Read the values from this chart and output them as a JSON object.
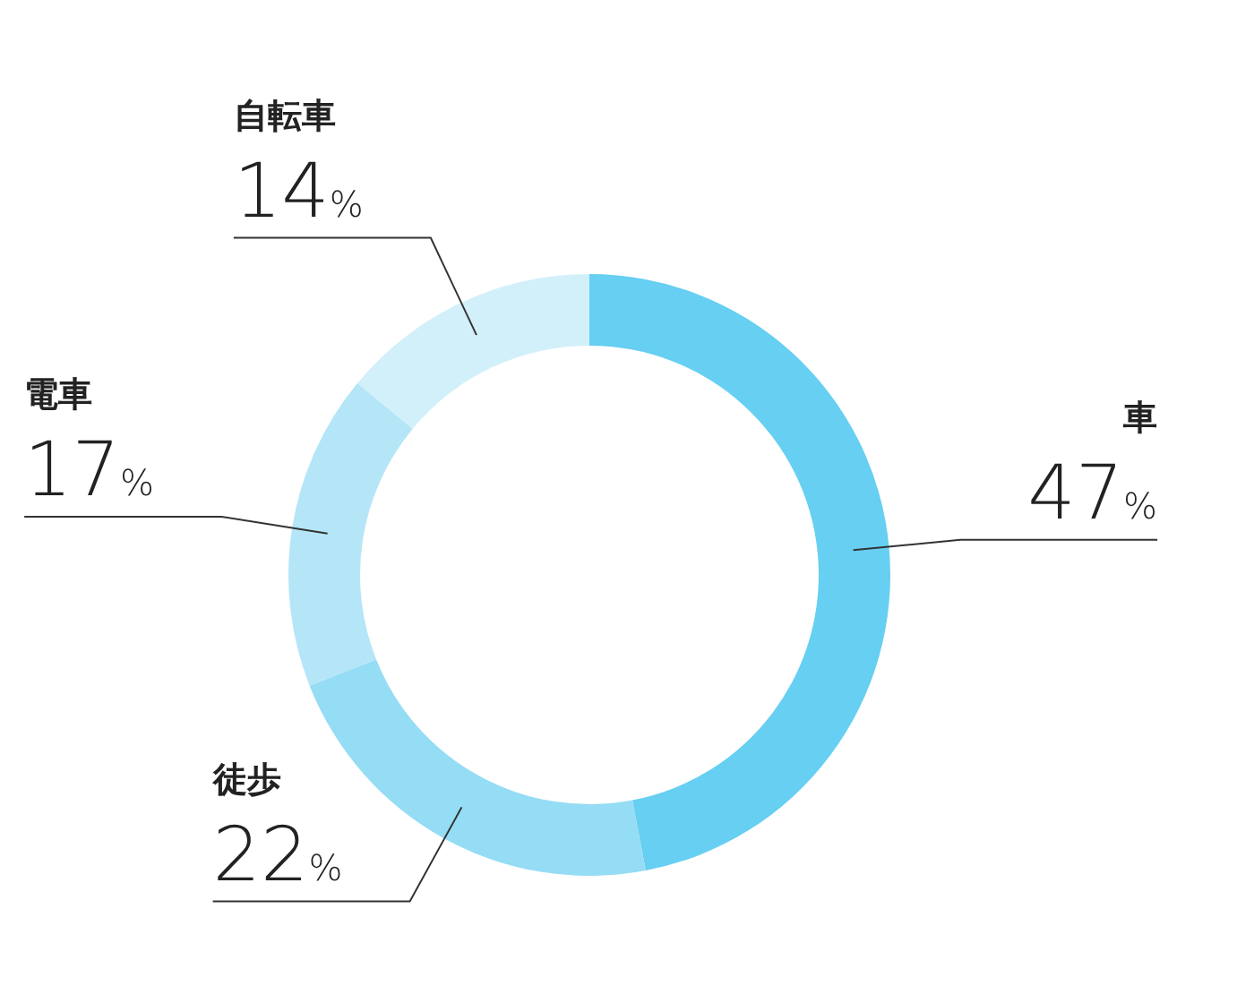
{
  "chart_data": {
    "type": "donut",
    "categories": [
      "車",
      "徒歩",
      "電車",
      "自転車"
    ],
    "values": [
      47,
      22,
      17,
      14
    ],
    "colors": [
      "#66cff2",
      "#95dcf5",
      "#b5e6f8",
      "#d2f0fa"
    ],
    "value_labels": [
      "47%",
      "22%",
      "17%",
      "14%"
    ]
  }
}
